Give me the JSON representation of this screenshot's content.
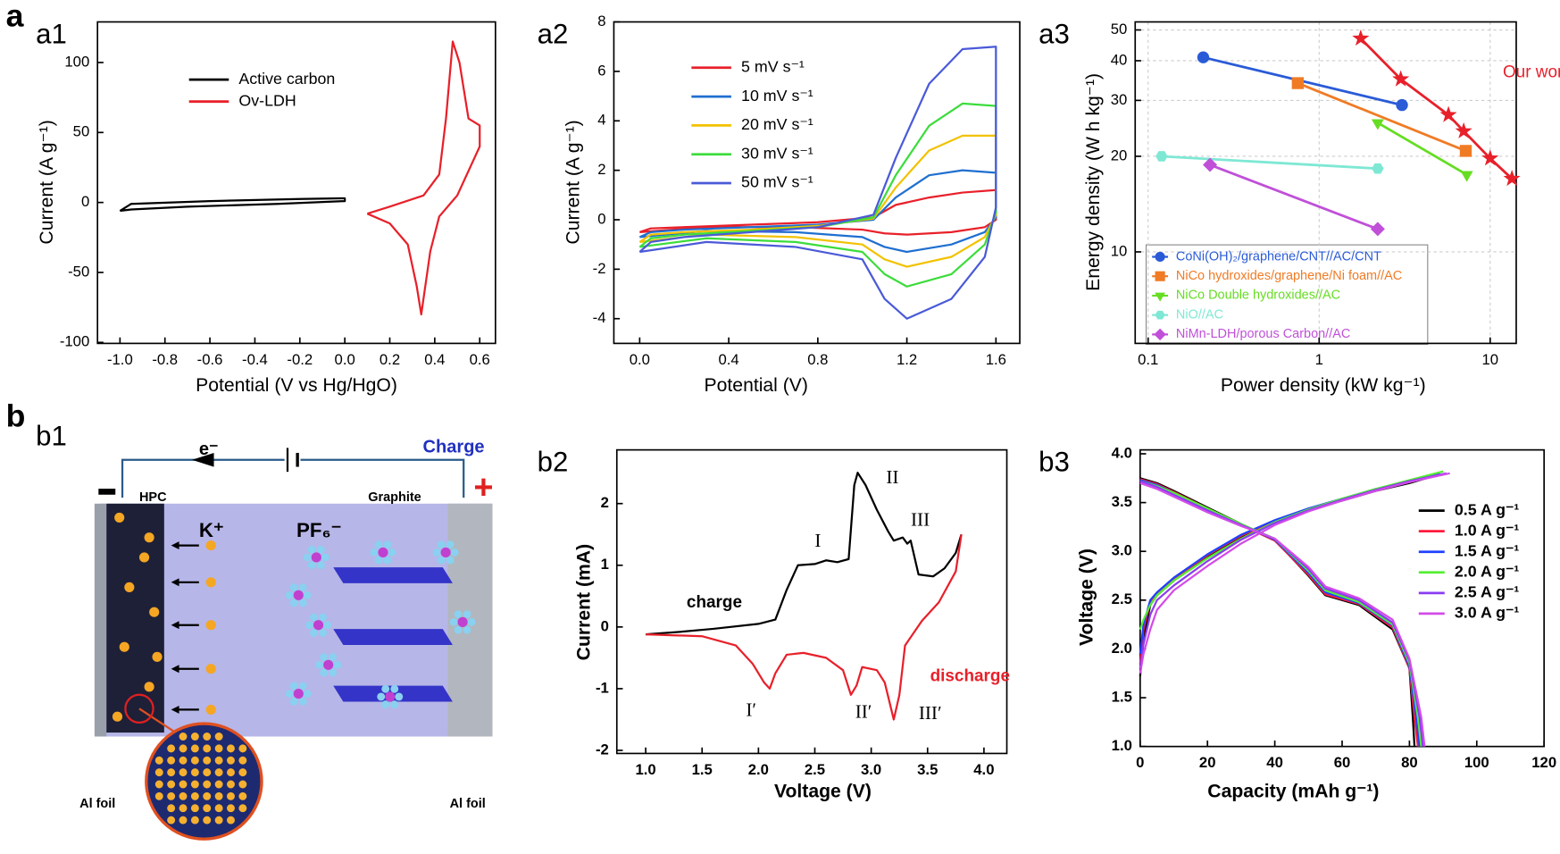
{
  "panel_labels": {
    "a": "a",
    "a1": "a1",
    "a2": "a2",
    "a3": "a3",
    "b": "b",
    "b1": "b1",
    "b2": "b2",
    "b3": "b3"
  },
  "schematic": {
    "electron": "e⁻",
    "charge": "Charge",
    "minus": "−",
    "plus": "+",
    "anode": "HPC",
    "cathode": "Graphite",
    "cation": "K⁺",
    "anion": "PF₆⁻",
    "foil_left": "Al foil",
    "foil_right": "Al foil"
  },
  "chart_data": [
    {
      "type": "line",
      "xlabel": "Potential (V vs Hg/HgO)",
      "ylabel": "Current (A g⁻¹)",
      "xlim": [
        -1.1,
        0.67
      ],
      "ylim": [
        -100.7,
        129
      ],
      "xticks": [
        {
          "value": -1.0,
          "label": "-1.0"
        },
        -0.8,
        -0.6,
        -0.4,
        -0.2,
        {
          "value": 0.0,
          "label": "0.0"
        },
        0.2,
        0.4,
        0.6
      ],
      "yticks": [
        100,
        50,
        0,
        -50,
        -100
      ],
      "series": [
        {
          "name": "Active carbon",
          "color": "#000000",
          "x": [
            -1.0,
            -0.95,
            -0.6,
            -0.2,
            0.0,
            0.0,
            -0.3,
            -0.7,
            -0.95,
            -1.0
          ],
          "values": [
            -6,
            -1,
            1,
            2.5,
            3,
            1,
            -1,
            -3,
            -5,
            -6
          ]
        },
        {
          "name": "Ov-LDH",
          "color": "#e8202a",
          "x": [
            0.1,
            0.2,
            0.35,
            0.42,
            0.45,
            0.48,
            0.51,
            0.55,
            0.6,
            0.6,
            0.5,
            0.42,
            0.38,
            0.34,
            0.32,
            0.28,
            0.2,
            0.1
          ],
          "values": [
            -8,
            -3,
            5,
            20,
            60,
            115,
            100,
            60,
            55,
            40,
            5,
            -10,
            -35,
            -80,
            -60,
            -30,
            -15,
            -8
          ]
        }
      ]
    },
    {
      "type": "line",
      "xlabel": "Potential (V)",
      "ylabel": "Current (A g⁻¹)",
      "xlim": [
        -0.116,
        1.707
      ],
      "ylim": [
        -5.0,
        8.0
      ],
      "xticks": [
        {
          "value": 0.0,
          "label": "0.0"
        },
        0.4,
        0.8,
        1.2,
        1.6
      ],
      "yticks": [
        8,
        6,
        4,
        2,
        0,
        -2,
        -4
      ],
      "x": [
        0,
        0.05,
        0.2,
        0.5,
        0.8,
        1.05,
        1.15,
        1.3,
        1.45,
        1.6,
        1.6,
        1.55,
        1.4,
        1.2,
        1.1,
        1.0,
        0.7,
        0.3,
        0
      ],
      "series": [
        {
          "name": "5 mV s⁻¹",
          "color": "#e8202a",
          "values": [
            -0.5,
            -0.35,
            -0.3,
            -0.2,
            -0.1,
            0.1,
            0.6,
            0.9,
            1.1,
            1.2,
            0.0,
            -0.3,
            -0.5,
            -0.6,
            -0.55,
            -0.4,
            -0.3,
            -0.3,
            -0.5
          ]
        },
        {
          "name": "10 mV s⁻¹",
          "color": "#1f6fd0",
          "values": [
            -0.7,
            -0.5,
            -0.4,
            -0.3,
            -0.2,
            0.0,
            0.9,
            1.8,
            2.0,
            1.9,
            0.1,
            -0.5,
            -1.0,
            -1.3,
            -1.1,
            -0.7,
            -0.5,
            -0.45,
            -0.7
          ]
        },
        {
          "name": "20 mV s⁻¹",
          "color": "#f2c200",
          "values": [
            -0.9,
            -0.6,
            -0.5,
            -0.4,
            -0.25,
            0.05,
            1.3,
            2.8,
            3.4,
            3.4,
            0.2,
            -0.7,
            -1.5,
            -1.9,
            -1.6,
            -1.0,
            -0.7,
            -0.6,
            -0.9
          ]
        },
        {
          "name": "30 mV s⁻¹",
          "color": "#3cdc3c",
          "values": [
            -1.1,
            -0.75,
            -0.6,
            -0.45,
            -0.3,
            0.1,
            1.8,
            3.8,
            4.7,
            4.6,
            0.3,
            -1.0,
            -2.2,
            -2.7,
            -2.2,
            -1.3,
            -0.9,
            -0.75,
            -1.1
          ]
        },
        {
          "name": "50 mV s⁻¹",
          "color": "#4a5ad8",
          "values": [
            -1.3,
            -0.9,
            -0.7,
            -0.5,
            -0.3,
            0.2,
            2.5,
            5.5,
            6.9,
            7.0,
            0.5,
            -1.5,
            -3.2,
            -4.0,
            -3.2,
            -1.6,
            -1.1,
            -0.9,
            -1.3
          ]
        }
      ]
    },
    {
      "type": "line",
      "xscale": "log",
      "yscale": "log",
      "grid": true,
      "xlabel": "Power density (kW kg⁻¹)",
      "ylabel": "Energy density (W h kg⁻¹)",
      "xlim": [
        0.084,
        14.2
      ],
      "ylim": [
        5.15,
        53
      ],
      "xticks": [
        0.1,
        1,
        10
      ],
      "yticks": [
        10,
        20,
        30,
        40,
        50
      ],
      "series": [
        {
          "name": "CoNi(OH)₂/graphene/CNT//AC/CNT",
          "color": "#2a5bd7",
          "marker": "circle",
          "x": [
            0.21,
            3.05
          ],
          "values": [
            41,
            29
          ]
        },
        {
          "name": "NiCo hydroxides/graphene/Ni foam//AC",
          "color": "#f07b25",
          "marker": "square",
          "x": [
            0.75,
            7.2
          ],
          "values": [
            34,
            20.8
          ]
        },
        {
          "name": "NiCo Double hydroxides//AC",
          "color": "#66dd22",
          "marker": "triangle",
          "x": [
            2.2,
            7.3
          ],
          "values": [
            25.5,
            17.5
          ]
        },
        {
          "name": "NiO//AC",
          "color": "#7ee8d4",
          "marker": "hexagon",
          "x": [
            0.12,
            2.2
          ],
          "values": [
            20,
            18.3
          ]
        },
        {
          "name": "NiMn-LDH/porous Carbon//AC",
          "color": "#c050d8",
          "marker": "diamond",
          "x": [
            0.23,
            2.2
          ],
          "values": [
            18.8,
            11.8
          ]
        },
        {
          "name": "Our work",
          "color": "#e8202a",
          "marker": "star",
          "x": [
            1.75,
            3.0,
            5.7,
            7.0,
            10,
            13.4
          ],
          "values": [
            47,
            35,
            27,
            24,
            19.7,
            17
          ]
        }
      ]
    },
    {
      "type": "line",
      "xlabel": "Voltage (V)",
      "ylabel": "Current (mA)",
      "xlim": [
        0.744,
        4.203
      ],
      "ylim": [
        -2.05,
        2.87
      ],
      "xticks": [
        {
          "value": 1.0,
          "label": "1.0"
        },
        1.5,
        {
          "value": 2.0,
          "label": "2.0"
        },
        2.5,
        {
          "value": 3.0,
          "label": "3.0"
        },
        3.5,
        {
          "value": 4.0,
          "label": "4.0"
        }
      ],
      "yticks": [
        2,
        1,
        0,
        -1,
        -2
      ],
      "annotations": [
        "I",
        "II",
        "III",
        "I′",
        "II′",
        "III′"
      ],
      "series": [
        {
          "name": "charge",
          "color": "#000000",
          "x": [
            1.0,
            1.3,
            1.6,
            2.0,
            2.15,
            2.25,
            2.35,
            2.5,
            2.6,
            2.7,
            2.8,
            2.85,
            2.88,
            2.95,
            3.05,
            3.15,
            3.2,
            3.28,
            3.32,
            3.35,
            3.42,
            3.55,
            3.65,
            3.75,
            3.8
          ],
          "values": [
            -0.12,
            -0.08,
            -0.03,
            0.05,
            0.12,
            0.6,
            1.0,
            1.02,
            1.08,
            1.05,
            1.1,
            2.3,
            2.5,
            2.3,
            1.9,
            1.55,
            1.4,
            1.45,
            1.35,
            1.4,
            0.85,
            0.82,
            0.95,
            1.2,
            1.5
          ]
        },
        {
          "name": "discharge",
          "color": "#e8202a",
          "x": [
            1.0,
            1.5,
            1.8,
            1.95,
            2.05,
            2.1,
            2.15,
            2.25,
            2.4,
            2.6,
            2.75,
            2.82,
            2.87,
            2.92,
            3.05,
            3.12,
            3.2,
            3.25,
            3.3,
            3.45,
            3.6,
            3.75,
            3.8
          ],
          "values": [
            -0.12,
            -0.15,
            -0.3,
            -0.6,
            -0.9,
            -1.0,
            -0.75,
            -0.45,
            -0.42,
            -0.5,
            -0.7,
            -1.1,
            -0.95,
            -0.65,
            -0.7,
            -0.9,
            -1.5,
            -1.1,
            -0.3,
            0.1,
            0.4,
            0.9,
            1.5
          ]
        }
      ]
    },
    {
      "type": "line",
      "xlabel": "Capacity (mAh g⁻¹)",
      "ylabel": "Voltage (V)",
      "xlim": [
        0,
        120
      ],
      "ylim": [
        1.0,
        4.04
      ],
      "xticks": [
        0,
        20,
        40,
        60,
        80,
        100,
        120
      ],
      "yticks": [
        {
          "value": 1.0,
          "label": "1.0"
        },
        1.5,
        {
          "value": 2.0,
          "label": "2.0"
        },
        2.5,
        {
          "value": 3.0,
          "label": "3.0"
        },
        3.5,
        {
          "value": 4.0,
          "label": "4.0"
        }
      ],
      "series": [
        {
          "name": "0.5 A g⁻¹",
          "color": "#000000",
          "x": [
            0,
            1,
            3,
            5,
            10,
            20,
            30,
            40,
            50,
            60,
            70,
            80,
            88,
            null,
            0,
            5,
            10,
            20,
            30,
            40,
            50,
            55,
            65,
            75,
            80,
            81,
            81.5
          ],
          "values": [
            1.72,
            2.1,
            2.45,
            2.55,
            2.7,
            2.95,
            3.15,
            3.3,
            3.42,
            3.52,
            3.62,
            3.7,
            3.78,
            null,
            3.75,
            3.7,
            3.62,
            3.45,
            3.28,
            3.12,
            2.75,
            2.55,
            2.45,
            2.2,
            1.8,
            1.3,
            1.0
          ]
        },
        {
          "name": "1.0 A g⁻¹",
          "color": "#ff1a3c",
          "x": [
            0,
            1,
            3,
            5,
            10,
            20,
            30,
            40,
            50,
            60,
            70,
            80,
            88.5,
            null,
            0,
            5,
            10,
            20,
            30,
            40,
            50,
            55,
            65,
            75,
            80,
            81.5,
            82.5
          ],
          "values": [
            1.85,
            2.2,
            2.48,
            2.57,
            2.72,
            2.96,
            3.16,
            3.31,
            3.43,
            3.53,
            3.63,
            3.71,
            3.79,
            null,
            3.74,
            3.69,
            3.61,
            3.44,
            3.27,
            3.11,
            2.76,
            2.56,
            2.46,
            2.22,
            1.8,
            1.3,
            1.0
          ]
        },
        {
          "name": "1.5 A g⁻¹",
          "color": "#2040ff",
          "x": [
            0,
            1,
            3,
            5,
            10,
            20,
            30,
            40,
            50,
            60,
            70,
            80,
            89,
            null,
            0,
            5,
            10,
            20,
            30,
            40,
            50,
            55,
            65,
            75,
            80,
            82,
            83
          ],
          "values": [
            1.95,
            2.25,
            2.5,
            2.58,
            2.73,
            2.97,
            3.17,
            3.32,
            3.44,
            3.54,
            3.64,
            3.72,
            3.8,
            null,
            3.73,
            3.68,
            3.6,
            3.43,
            3.27,
            3.12,
            2.78,
            2.58,
            2.47,
            2.24,
            1.82,
            1.3,
            1.0
          ]
        },
        {
          "name": "2.0 A g⁻¹",
          "color": "#55ee33",
          "x": [
            0,
            1,
            3,
            5,
            10,
            20,
            30,
            40,
            50,
            60,
            70,
            80,
            90,
            null,
            0,
            5,
            10,
            20,
            30,
            40,
            50,
            55,
            65,
            75,
            80,
            82.5,
            83.5
          ],
          "values": [
            2.2,
            2.3,
            2.45,
            2.55,
            2.7,
            2.93,
            3.13,
            3.3,
            3.43,
            3.54,
            3.64,
            3.73,
            3.82,
            null,
            3.72,
            3.67,
            3.6,
            3.44,
            3.28,
            3.13,
            2.8,
            2.6,
            2.48,
            2.25,
            1.85,
            1.3,
            1.0
          ]
        },
        {
          "name": "2.5 A g⁻¹",
          "color": "#8a3cf0",
          "x": [
            0,
            1,
            3,
            5,
            10,
            20,
            30,
            40,
            50,
            60,
            70,
            80,
            91,
            null,
            0,
            5,
            10,
            20,
            30,
            40,
            50,
            55,
            65,
            75,
            80,
            83,
            84
          ],
          "values": [
            1.8,
            2.05,
            2.35,
            2.5,
            2.65,
            2.9,
            3.12,
            3.29,
            3.42,
            3.53,
            3.63,
            3.72,
            3.8,
            null,
            3.72,
            3.66,
            3.58,
            3.42,
            3.27,
            3.13,
            2.82,
            2.62,
            2.5,
            2.27,
            1.88,
            1.3,
            1.0
          ]
        },
        {
          "name": "3.0 A g⁻¹",
          "color": "#d24ce8",
          "x": [
            0,
            1,
            3,
            5,
            10,
            20,
            30,
            40,
            50,
            60,
            70,
            80,
            92,
            null,
            0,
            5,
            10,
            20,
            30,
            40,
            50,
            55,
            65,
            75,
            80,
            83.5,
            84.5
          ],
          "values": [
            1.75,
            1.95,
            2.2,
            2.4,
            2.6,
            2.85,
            3.08,
            3.27,
            3.41,
            3.52,
            3.62,
            3.71,
            3.8,
            null,
            3.7,
            3.64,
            3.56,
            3.4,
            3.26,
            3.13,
            2.84,
            2.64,
            2.52,
            2.3,
            1.9,
            1.3,
            1.0
          ]
        }
      ]
    }
  ]
}
